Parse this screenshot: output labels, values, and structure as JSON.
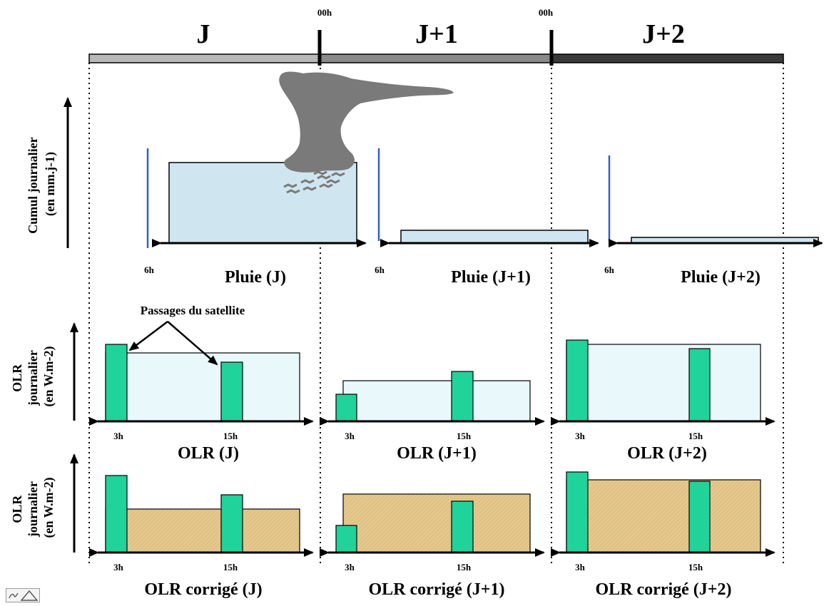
{
  "header": {
    "days": [
      "J",
      "J+1",
      "J+2"
    ],
    "midnight_label": "00h"
  },
  "rain_panel": {
    "axis_label_line1": "Cumul journalier",
    "axis_label_line2": "(en mm.j-1)",
    "cutoff_hour": "6h",
    "captions": [
      "Pluie (J)",
      "Pluie (J+1)",
      "Pluie (J+2)"
    ],
    "amount_level": [
      1.0,
      0.16,
      0.07
    ]
  },
  "olr_panel": {
    "axis_label_line1": "OLR",
    "axis_label_line2": "journalier",
    "axis_label_line3": "(en W.m-2)",
    "annotation": "Passages du satellite",
    "pass_hours": [
      "3h",
      "15h"
    ],
    "captions": [
      "OLR (J)",
      "OLR (J+1)",
      "OLR (J+2)"
    ]
  },
  "olr_corrected_panel": {
    "axis_label_line1": "OLR",
    "axis_label_line2": "journalier",
    "axis_label_line3": "(en W.m-2)",
    "pass_hours": [
      "3h",
      "15h"
    ],
    "captions": [
      "OLR corrigé (J)",
      "OLR corrigé (J+1)",
      "OLR corrigé (J+2)"
    ]
  },
  "colors": {
    "rain_fill": "#cfe6f1",
    "olr_fill": "#e8f8fb",
    "corrected_fill": "#e4c88c",
    "pass_bar": "#1fd39a",
    "cutoff_line": "#3060d0",
    "cloud": "#7a7a7a",
    "band_j": "#b8b8b8",
    "band_j1": "#8a8a8a",
    "band_j2": "#3a3a3a"
  }
}
